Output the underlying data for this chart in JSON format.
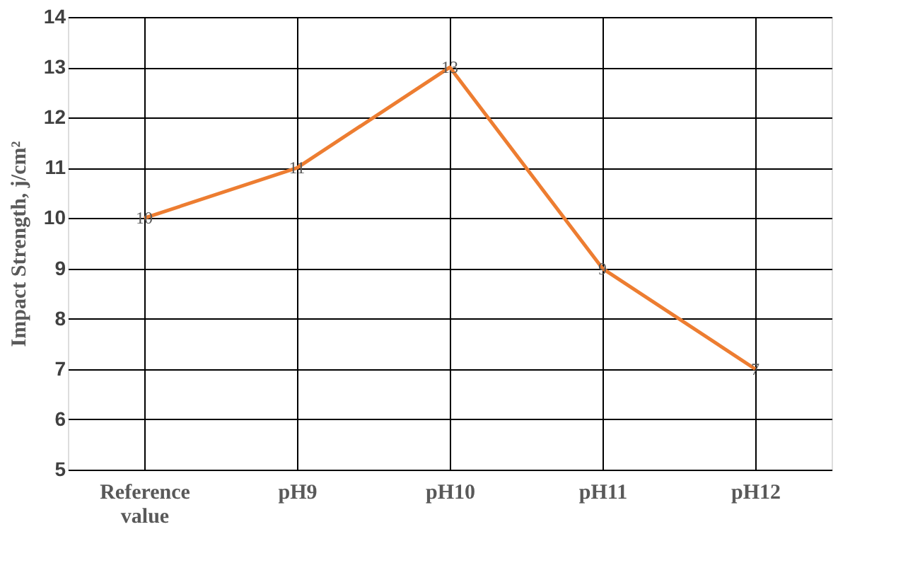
{
  "chart_data": {
    "type": "line",
    "ylabel": "Impact Strength, j/cm²",
    "categories": [
      "Reference value",
      "pH9",
      "pH10",
      "pH11",
      "pH12"
    ],
    "series": [
      {
        "color": "#ed7d31",
        "values": [
          10,
          11,
          13,
          9,
          7
        ]
      }
    ],
    "ylim": [
      5,
      14
    ],
    "yticks": [
      5,
      6,
      7,
      8,
      9,
      10,
      11,
      12,
      13,
      14
    ],
    "grid": true,
    "data_labels": true,
    "marker": "none",
    "line_style": "solid"
  }
}
